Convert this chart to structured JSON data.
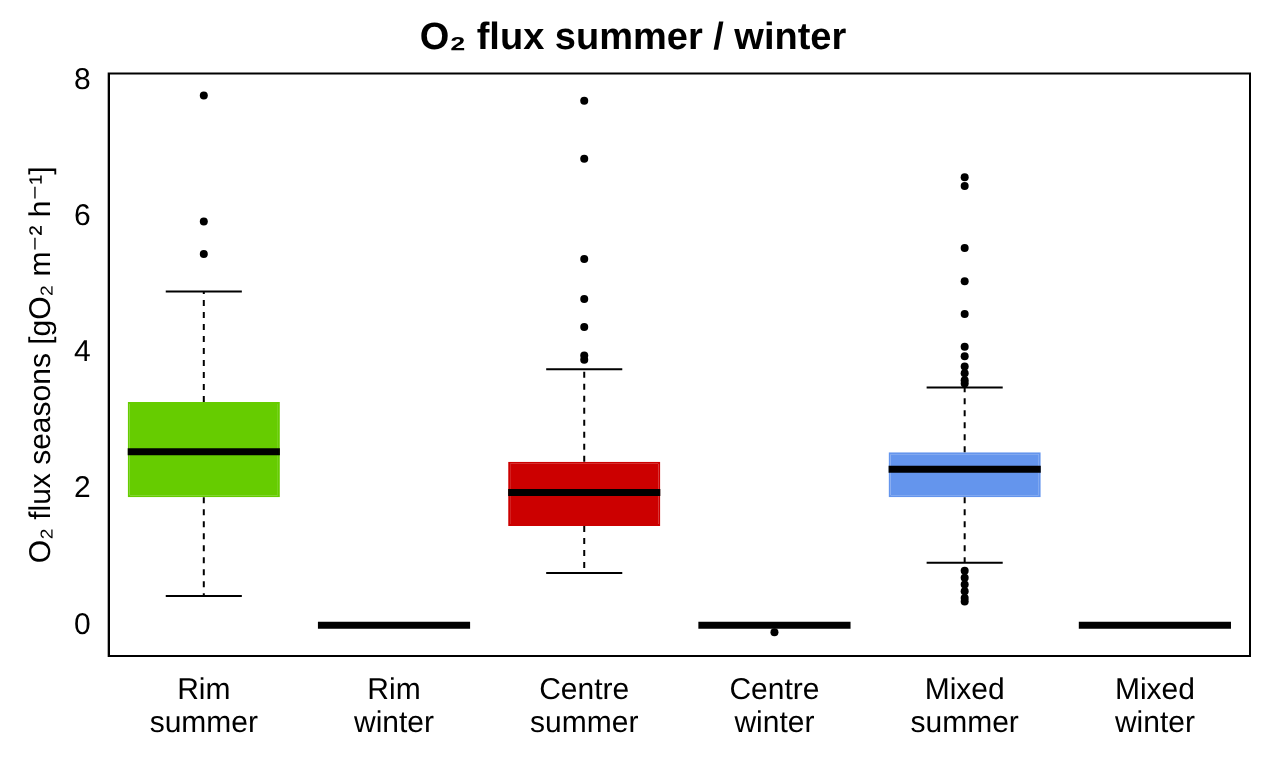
{
  "chart_data": {
    "type": "box",
    "title": "O₂ flux summer / winter",
    "ylabel": "O₂ flux seasons [gO₂ m⁻² h⁻¹]",
    "categories": [
      "Rim summer",
      "Rim winter",
      "Centre summer",
      "Centre winter",
      "Mixed summer",
      "Mixed winter"
    ],
    "colors": [
      "#66cc00",
      "#000000",
      "#cc0000",
      "#000000",
      "#6495ed",
      "#000000"
    ],
    "boxes": [
      {
        "low": 0.43,
        "q1": 1.88,
        "median": 2.55,
        "q3": 3.28,
        "high": 4.9,
        "outliers": [
          7.78,
          5.93,
          5.45
        ]
      },
      {
        "low": 0,
        "q1": 0,
        "median": 0,
        "q3": 0,
        "high": 0
      },
      {
        "low": 0.77,
        "q1": 1.46,
        "median": 1.95,
        "q3": 2.4,
        "high": 3.76,
        "outliers": [
          7.7,
          6.85,
          5.38,
          4.79,
          4.38,
          3.96,
          3.9
        ]
      },
      {
        "low": 0,
        "q1": 0,
        "median": 0,
        "q3": 0,
        "high": 0,
        "outliers": [
          -0.1
        ]
      },
      {
        "low": 0.92,
        "q1": 1.88,
        "median": 2.29,
        "q3": 2.54,
        "high": 3.49,
        "outliers": [
          6.58,
          6.45,
          5.54,
          5.05,
          4.57,
          4.09,
          3.95,
          3.8,
          3.7,
          3.6,
          3.55,
          0.8,
          0.7,
          0.6,
          0.5,
          0.4,
          0.35
        ]
      },
      {
        "low": 0,
        "q1": 0,
        "median": 0,
        "q3": 0,
        "high": 0
      }
    ],
    "ylim": [
      -0.45,
      8.1
    ],
    "yticks": [
      0,
      2,
      4,
      6,
      8
    ],
    "grid": false,
    "legend": false
  }
}
